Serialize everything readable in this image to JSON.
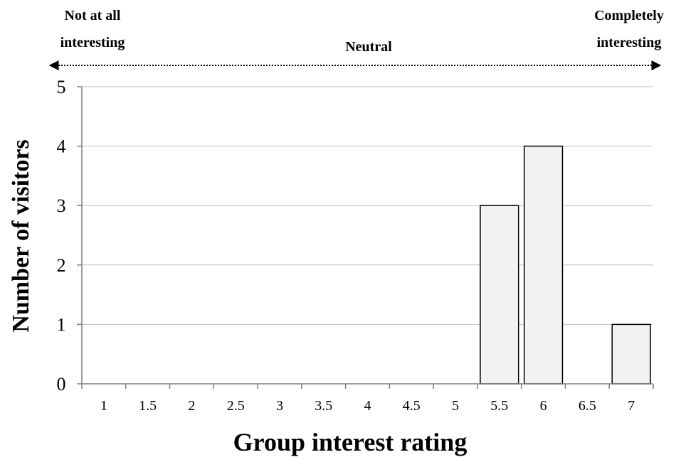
{
  "chart_data": {
    "type": "bar",
    "title": "",
    "xlabel": "Group interest rating",
    "ylabel": "Number of visitors",
    "categories": [
      "1",
      "1.5",
      "2",
      "2.5",
      "3",
      "3.5",
      "4",
      "4.5",
      "5",
      "5.5",
      "6",
      "6.5",
      "7"
    ],
    "values": [
      0,
      0,
      0,
      0,
      0,
      0,
      0,
      0,
      0,
      3,
      4,
      0,
      1
    ],
    "ylim": [
      0,
      5
    ],
    "yticks": [
      "0",
      "1",
      "2",
      "3",
      "4",
      "5"
    ],
    "grid": true,
    "bar_color": "#f2f2f2",
    "bar_edge_color": "#000000",
    "grid_color": "#bfbfbf",
    "scale": {
      "left_line1": "Not at all",
      "left_line2": "interesting",
      "middle": "Neutral",
      "right_line1": "Completely",
      "right_line2": "interesting"
    }
  }
}
